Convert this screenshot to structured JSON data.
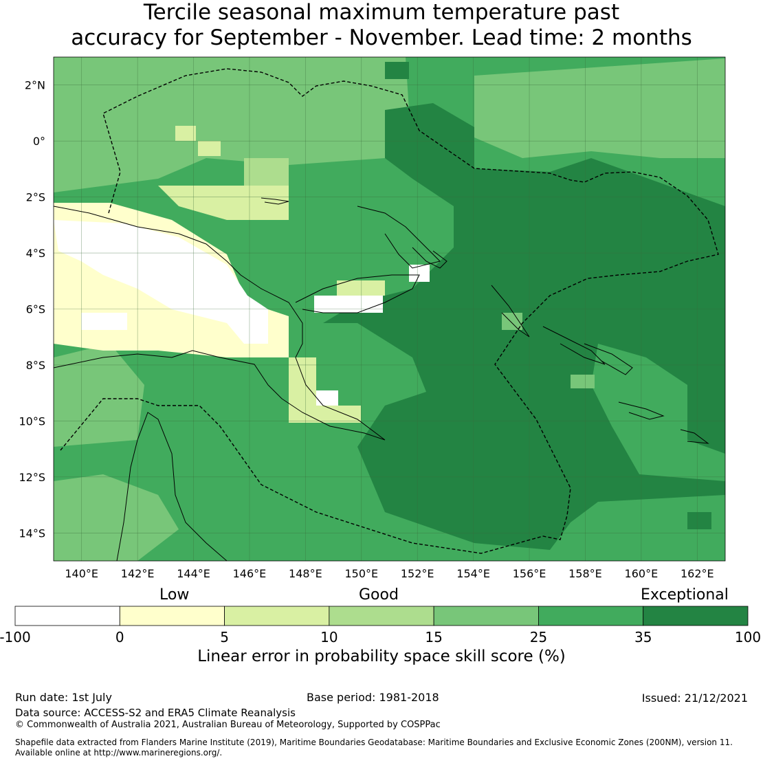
{
  "title": {
    "line1": "Tercile seasonal maximum temperature past",
    "line2": "accuracy for September - November. Lead time: 2 months"
  },
  "map": {
    "lon_range": [
      139,
      163
    ],
    "lat_range": [
      -15,
      3
    ],
    "lon_ticks": [
      "140°E",
      "142°E",
      "144°E",
      "146°E",
      "148°E",
      "150°E",
      "152°E",
      "154°E",
      "156°E",
      "158°E",
      "160°E",
      "162°E"
    ],
    "lat_ticks": [
      "2°N",
      "0°",
      "2°S",
      "4°S",
      "6°S",
      "8°S",
      "10°S",
      "12°S",
      "14°S"
    ],
    "grid": true
  },
  "colorbar": {
    "captions": {
      "low": "Low",
      "good": "Good",
      "exceptional": "Exceptional"
    },
    "tick_labels": [
      "-100",
      "0",
      "5",
      "10",
      "15",
      "25",
      "35",
      "100"
    ],
    "colors": [
      "#ffffff",
      "#ffffcc",
      "#d9f0a3",
      "#addd8e",
      "#78c679",
      "#41ab5d",
      "#238443"
    ],
    "label": "Linear error in probability space skill score (%)"
  },
  "footer": {
    "run_date": "Run date: 1st July",
    "base_period": "Base period: 1981-2018",
    "issued": "Issued: 21/12/2021",
    "data_source": "Data source: ACCESS-S2 and ERA5 Climate Reanalysis",
    "copyright": "© Commonwealth of Australia 2021, Australian Bureau of Meteorology, Supported by COSPPac",
    "shapefile_line1": "Shapefile data extracted from Flanders Marine Institute (2019), Maritime Boundaries Geodatabase: Maritime Boundaries and Exclusive Economic Zones (200NM), version 11.",
    "shapefile_line2": "Available online at http://www.marineregions.org/."
  }
}
